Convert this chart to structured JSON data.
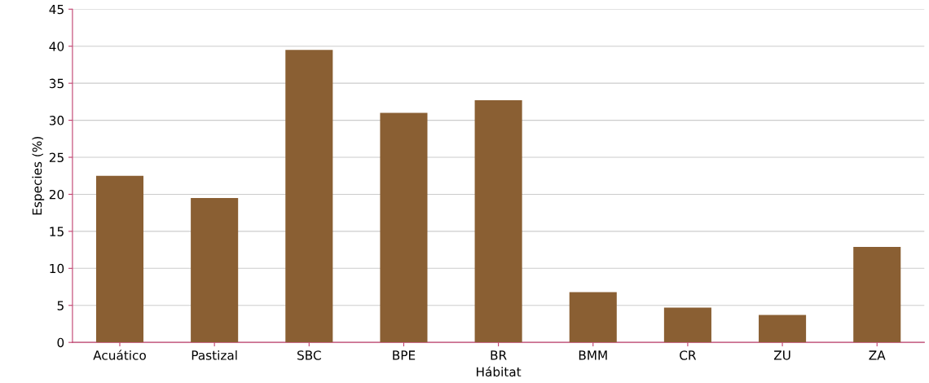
{
  "chart_data": {
    "type": "bar",
    "xlabel": "Hábitat",
    "ylabel": "Especies (%)",
    "categories": [
      "Acuático",
      "Pastizal",
      "SBC",
      "BPE",
      "BR",
      "BMM",
      "CR",
      "ZU",
      "ZA"
    ],
    "values": [
      22.5,
      19.5,
      39.5,
      31.0,
      32.7,
      6.8,
      4.7,
      3.7,
      12.9
    ],
    "color": "#8a5f33",
    "ylim": [
      0,
      45
    ],
    "yticks": [
      0,
      5,
      10,
      15,
      20,
      25,
      30,
      35,
      40,
      45
    ],
    "grid": "y"
  }
}
